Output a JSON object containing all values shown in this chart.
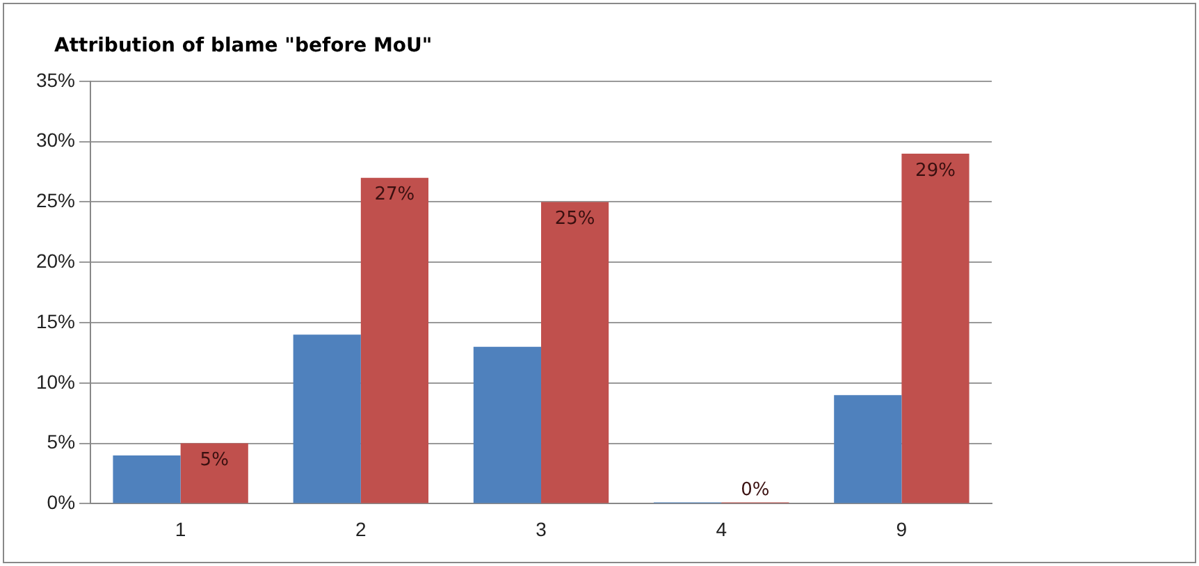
{
  "chart_data": {
    "type": "bar",
    "title": "Attribution of blame \"before MoU\"",
    "categories": [
      "1",
      "2",
      "3",
      "4",
      "9"
    ],
    "series": [
      {
        "color": "#4f81bd",
        "values": [
          4,
          14,
          13,
          0,
          9
        ]
      },
      {
        "color": "#c0504d",
        "values": [
          5,
          27,
          25,
          0,
          29
        ],
        "value_labels": [
          "5%",
          "27%",
          "25%",
          "0%",
          "29%"
        ]
      }
    ],
    "ylim": [
      0,
      35
    ],
    "yticks": [
      {
        "value": 0,
        "label": "0%"
      },
      {
        "value": 5,
        "label": "5%"
      },
      {
        "value": 10,
        "label": "10%"
      },
      {
        "value": 15,
        "label": "15%"
      },
      {
        "value": 20,
        "label": "20%"
      },
      {
        "value": 25,
        "label": "25%"
      },
      {
        "value": 30,
        "label": "30%"
      },
      {
        "value": 35,
        "label": "35%"
      }
    ],
    "grid": "y"
  }
}
